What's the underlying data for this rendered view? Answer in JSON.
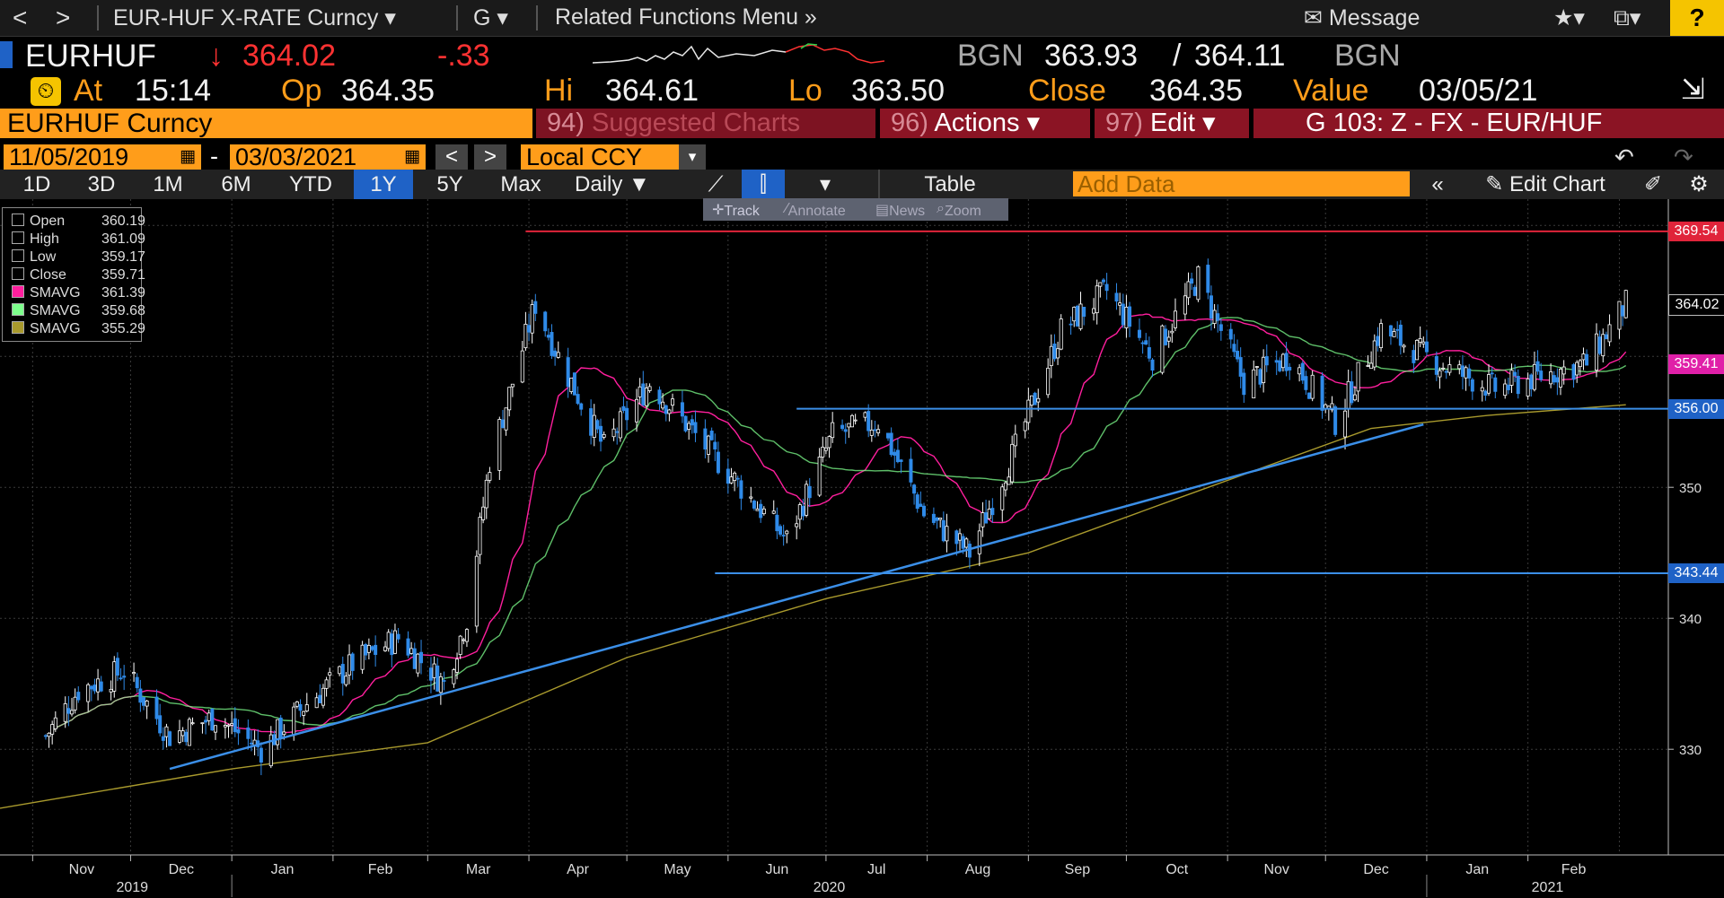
{
  "menubar": {
    "back": "<",
    "forward": ">",
    "security_menu": "EUR-HUF X-RATE Curncy",
    "function_menu": "G",
    "related": "Related Functions Menu",
    "message": "Message",
    "help": "?"
  },
  "quote": {
    "ticker": "EURHUF",
    "arrow": "↓",
    "last": "364.02",
    "change": "-.33",
    "bid_source": "BGN",
    "bid": "363.93",
    "ask": "364.11",
    "ask_source": "BGN",
    "at_label": "At",
    "time": "15:14",
    "open_label": "Op",
    "open": "364.35",
    "high_label": "Hi",
    "high": "364.61",
    "low_label": "Lo",
    "low": "363.50",
    "close_label": "Close",
    "close": "364.35",
    "value_label": "Value",
    "value_date": "03/05/21"
  },
  "secbar": {
    "name": "EURHUF Curncy",
    "suggested_num": "94)",
    "suggested": "Suggested Charts",
    "actions_num": "96)",
    "actions": "Actions",
    "edit_num": "97)",
    "edit": "Edit",
    "page": "G 103: Z - FX - EUR/HUF"
  },
  "datebar": {
    "start": "11/05/2019",
    "dash": "-",
    "end": "03/03/2021",
    "currency": "Local CCY"
  },
  "rangebar": {
    "ranges": [
      "1D",
      "3D",
      "1M",
      "6M",
      "YTD",
      "1Y",
      "5Y",
      "Max"
    ],
    "selected": "1Y",
    "frequency": "Daily",
    "table": "Table",
    "add_data_placeholder": "Add Data",
    "edit_chart": "Edit Chart"
  },
  "tools": {
    "track": "Track",
    "annotate": "Annotate",
    "news": "News",
    "zoom": "Zoom"
  },
  "legend": [
    {
      "label": "Open",
      "value": "360.19",
      "color": "#000000"
    },
    {
      "label": "High",
      "value": "361.09",
      "color": "#000000"
    },
    {
      "label": "Low",
      "value": "359.17",
      "color": "#000000"
    },
    {
      "label": "Close",
      "value": "359.71",
      "color": "#000000"
    },
    {
      "label": "SMAVG",
      "value": "361.39",
      "color": "#ff1f9e"
    },
    {
      "label": "SMAVG",
      "value": "359.68",
      "color": "#7dff8c"
    },
    {
      "label": "SMAVG",
      "value": "355.29",
      "color": "#a99a2d"
    }
  ],
  "price_labels": [
    {
      "text": "369.54",
      "value": 369.54,
      "color": "#e0243a"
    },
    {
      "text": "364.02",
      "value": 364.02,
      "color": "#000000"
    },
    {
      "text": "359.41",
      "value": 359.41,
      "color": "#e020a8"
    },
    {
      "text": "356.00",
      "value": 356.0,
      "color": "#1f62c6"
    },
    {
      "text": "343.44",
      "value": 343.44,
      "color": "#1f62c6"
    }
  ],
  "colors": {
    "orange": "#ff9d1a",
    "up_candle": "#ffffff",
    "down_candle": "#2f8ae8",
    "trendline": "#3b8fe8",
    "resistance": "#e0243a"
  },
  "chart_data": {
    "type": "candlestick",
    "y_ticks": [
      330,
      340,
      350
    ],
    "ylim": [
      322,
      372
    ],
    "months": [
      "Nov",
      "Dec",
      "Jan",
      "Feb",
      "Mar",
      "Apr",
      "May",
      "Jun",
      "Jul",
      "Aug",
      "Sep",
      "Oct",
      "Nov",
      "Dec",
      "Jan",
      "Feb"
    ],
    "years": [
      "2019",
      "2020",
      "2021"
    ],
    "close_anchor_series": [
      [
        "2019-11-05",
        331.0
      ],
      [
        "2019-11-15",
        334.5
      ],
      [
        "2019-11-29",
        336.0
      ],
      [
        "2019-12-13",
        331.0
      ],
      [
        "2019-12-27",
        332.5
      ],
      [
        "2020-01-10",
        330.0
      ],
      [
        "2020-01-24",
        333.5
      ],
      [
        "2020-02-07",
        336.5
      ],
      [
        "2020-02-21",
        338.5
      ],
      [
        "2020-03-06",
        335.0
      ],
      [
        "2020-03-13",
        340.0
      ],
      [
        "2020-03-20",
        352.0
      ],
      [
        "2020-03-27",
        358.0
      ],
      [
        "2020-04-03",
        364.0
      ],
      [
        "2020-04-10",
        360.0
      ],
      [
        "2020-04-24",
        353.0
      ],
      [
        "2020-05-08",
        358.0
      ],
      [
        "2020-05-22",
        354.0
      ],
      [
        "2020-06-05",
        350.0
      ],
      [
        "2020-06-19",
        346.0
      ],
      [
        "2020-07-03",
        354.0
      ],
      [
        "2020-07-17",
        355.0
      ],
      [
        "2020-07-31",
        348.0
      ],
      [
        "2020-08-14",
        345.0
      ],
      [
        "2020-08-28",
        353.0
      ],
      [
        "2020-09-11",
        362.0
      ],
      [
        "2020-09-25",
        365.0
      ],
      [
        "2020-10-09",
        360.0
      ],
      [
        "2020-10-23",
        366.0
      ],
      [
        "2020-11-06",
        358.0
      ],
      [
        "2020-11-20",
        360.0
      ],
      [
        "2020-12-04",
        355.0
      ],
      [
        "2020-12-18",
        362.0
      ],
      [
        "2021-01-08",
        359.0
      ],
      [
        "2021-01-22",
        357.5
      ],
      [
        "2021-02-05",
        358.5
      ],
      [
        "2021-02-19",
        359.5
      ],
      [
        "2021-03-03",
        364.0
      ]
    ],
    "lines": [
      {
        "name": "resistance",
        "value": 369.54
      },
      {
        "name": "support-upper",
        "value": 356.0
      },
      {
        "name": "support-lower",
        "value": 343.44
      }
    ]
  }
}
